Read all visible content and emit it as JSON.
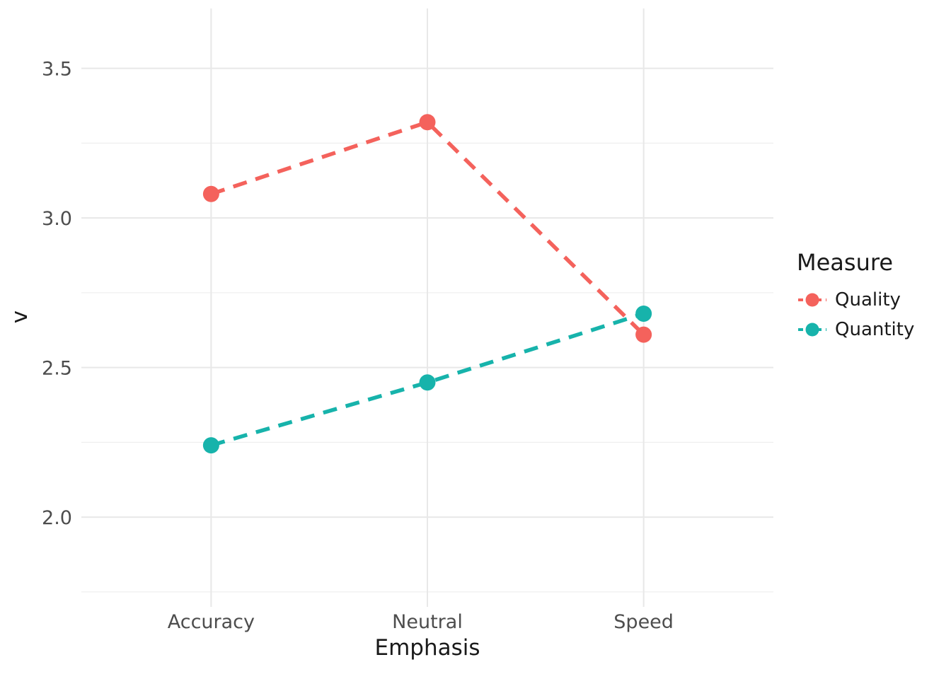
{
  "chart_data": {
    "type": "line",
    "title": "",
    "categories": [
      "Accuracy",
      "Neutral",
      "Speed"
    ],
    "series": [
      {
        "name": "Quality",
        "color": "#f4625c",
        "values": [
          3.08,
          3.32,
          2.61
        ]
      },
      {
        "name": "Quantity",
        "color": "#17b3ab",
        "values": [
          2.24,
          2.45,
          2.68
        ]
      }
    ],
    "xlabel": "Emphasis",
    "ylabel": "v",
    "ylim": [
      1.7,
      3.7
    ],
    "yticks": [
      2.0,
      2.5,
      3.0,
      3.5
    ],
    "ytick_labels": [
      "2.0",
      "2.5",
      "3.0",
      "3.5"
    ],
    "minor_yticks": [
      1.75,
      2.25,
      2.75,
      3.25
    ],
    "legend_title": "Measure",
    "legend_position": "right",
    "line_style": "dashed",
    "grid": true,
    "style": {
      "background": "#ffffff",
      "major_grid_color": "#e8e8e8",
      "minor_grid_color": "#efefef",
      "tick_label_color": "#4d4d4d",
      "axis_title_color": "#1a1a1a"
    }
  }
}
